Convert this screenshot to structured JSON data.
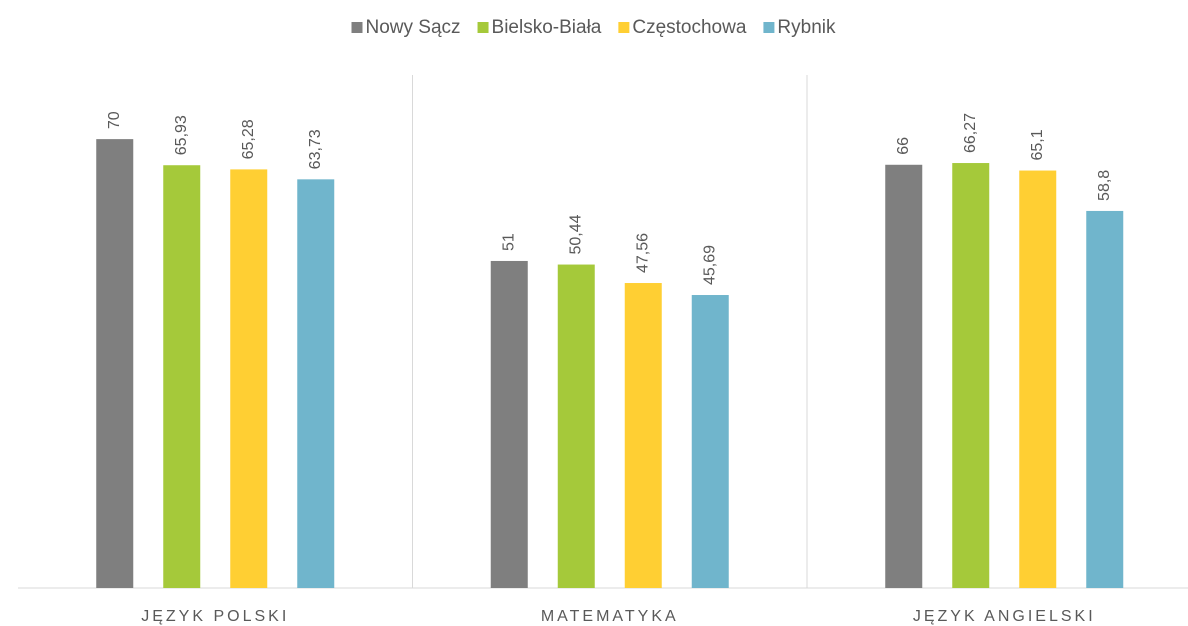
{
  "chart_data": {
    "type": "bar",
    "categories": [
      "JĘZYK POLSKI",
      "MATEMATYKA",
      "JĘZYK ANGIELSKI"
    ],
    "series": [
      {
        "name": "Nowy Sącz",
        "color": "#7f7f7f",
        "values": [
          70,
          51,
          66
        ],
        "value_labels": [
          "70",
          "51",
          "66"
        ]
      },
      {
        "name": "Bielsko-Biała",
        "color": "#a5c93a",
        "values": [
          65.93,
          50.44,
          66.27
        ],
        "value_labels": [
          "65,93",
          "50,44",
          "66,27"
        ]
      },
      {
        "name": "Częstochowa",
        "color": "#ffcf33",
        "values": [
          65.28,
          47.56,
          65.1
        ],
        "value_labels": [
          "65,28",
          "47,56",
          "65,1"
        ]
      },
      {
        "name": "Rybnik",
        "color": "#70b5cc",
        "values": [
          63.73,
          45.69,
          58.8
        ],
        "value_labels": [
          "63,73",
          "45,69",
          "58,8"
        ]
      }
    ],
    "ylim": [
      0,
      80
    ],
    "legend": "top"
  }
}
